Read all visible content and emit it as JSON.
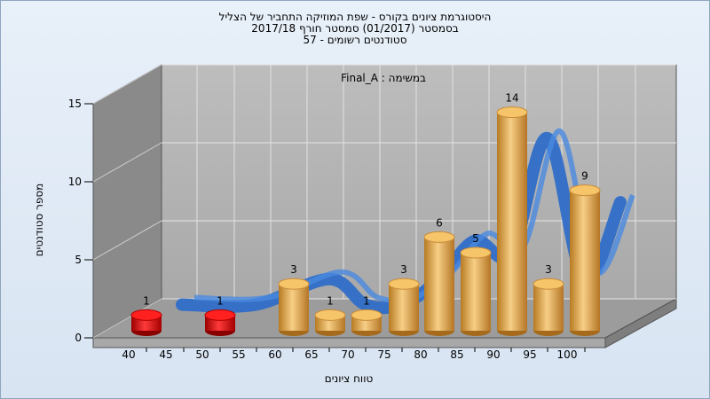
{
  "chart_data": {
    "type": "bar",
    "title": "היסטוגרמת ציונים בקורס - שפת המוזיקה התחביר של הצליל",
    "subtitle_1": "בסמסטר  (01/2017)  סמסטר חורף 2017/18",
    "subtitle_2": "סטודנטים רשומים - 57",
    "annotation": "במשימה : Final_A",
    "xlabel": "טווח ציונים",
    "ylabel": "מספר סטודנטים",
    "x_ticks": [
      "40",
      "45",
      "50",
      "55",
      "60",
      "65",
      "70",
      "75",
      "80",
      "85",
      "90",
      "95",
      "100"
    ],
    "y_ticks": [
      "0",
      "5",
      "10",
      "15"
    ],
    "ylim": [
      0,
      15
    ],
    "categories": [
      "40-45",
      "50-55",
      "60-65",
      "65-70",
      "70-75",
      "75-80",
      "80-85",
      "85-90",
      "90-95",
      "95-100",
      "100"
    ],
    "values": [
      1,
      1,
      3,
      1,
      1,
      3,
      6,
      5,
      14,
      3,
      9
    ],
    "bar_colors": [
      "red",
      "red",
      "orange",
      "orange",
      "orange",
      "orange",
      "orange",
      "orange",
      "orange",
      "orange",
      "orange"
    ],
    "trend_curve": "blue smoothed distribution ribbon",
    "grid": true
  },
  "colors": {
    "red": "#d41010",
    "orange": "#e6a545",
    "ribbon": "#3a7ad4",
    "wall": "#b4b4b4",
    "floor": "#9a9a9a",
    "side": "#808080"
  }
}
